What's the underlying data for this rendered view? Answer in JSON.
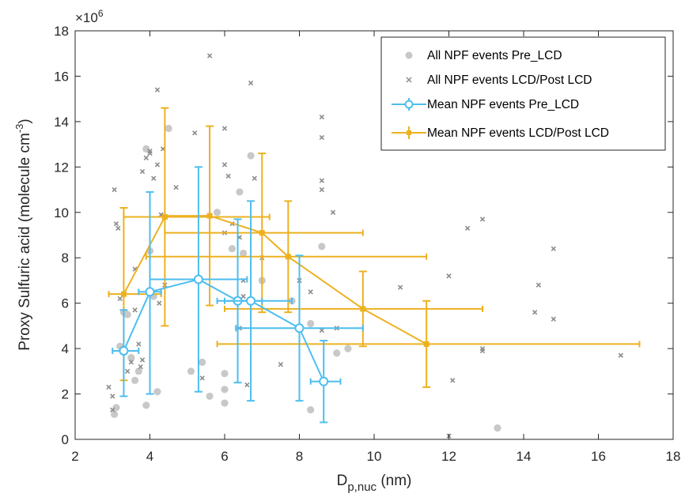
{
  "chart_data": {
    "type": "scatter",
    "xlabel": {
      "main": "D",
      "sub": "p,nuc",
      "unit": " (nm)"
    },
    "ylabel": {
      "main": "Proxy Sulfuric acid (molecule cm",
      "sup": "-3",
      "end": ")"
    },
    "y_exponent": {
      "base": "×10",
      "power": "6"
    },
    "xlim": [
      2,
      18
    ],
    "ylim": [
      0,
      18
    ],
    "xticks": [
      2,
      4,
      6,
      8,
      10,
      12,
      14,
      16,
      18
    ],
    "yticks": [
      0,
      2,
      4,
      6,
      8,
      10,
      12,
      14,
      16,
      18
    ],
    "grid": false,
    "legend_position": "top-right",
    "colors": {
      "pre": "#4dbeee",
      "post": "#edb120",
      "scatter_pre": "#c8c8c8",
      "scatter_post": "#8c8c8c",
      "axis": "#262626"
    },
    "series": [
      {
        "name": "All NPF events Pre_LCD",
        "marker": "circle",
        "points": [
          [
            3.05,
            1.1
          ],
          [
            3.1,
            1.4
          ],
          [
            3.2,
            4.1
          ],
          [
            3.3,
            5.6
          ],
          [
            3.4,
            5.5
          ],
          [
            3.5,
            3.6
          ],
          [
            3.6,
            2.6
          ],
          [
            3.7,
            3.0
          ],
          [
            3.9,
            12.8
          ],
          [
            3.9,
            1.5
          ],
          [
            4.0,
            8.3
          ],
          [
            4.1,
            6.3
          ],
          [
            4.2,
            2.1
          ],
          [
            4.5,
            13.7
          ],
          [
            5.1,
            3.0
          ],
          [
            5.4,
            3.4
          ],
          [
            5.6,
            1.9
          ],
          [
            5.8,
            10.0
          ],
          [
            6.0,
            2.9
          ],
          [
            6.0,
            2.2
          ],
          [
            6.0,
            1.6
          ],
          [
            6.2,
            8.4
          ],
          [
            6.4,
            10.9
          ],
          [
            6.5,
            8.2
          ],
          [
            6.7,
            12.5
          ],
          [
            7.0,
            7.0
          ],
          [
            7.8,
            6.1
          ],
          [
            8.3,
            5.1
          ],
          [
            8.3,
            1.3
          ],
          [
            8.6,
            8.5
          ],
          [
            9.0,
            3.8
          ],
          [
            9.3,
            4.0
          ],
          [
            13.3,
            0.5
          ]
        ]
      },
      {
        "name": "All NPF events LCD/Post LCD",
        "marker": "x",
        "points": [
          [
            2.9,
            2.3
          ],
          [
            3.0,
            1.9
          ],
          [
            3.0,
            1.3
          ],
          [
            3.05,
            11.0
          ],
          [
            3.1,
            9.5
          ],
          [
            3.15,
            9.3
          ],
          [
            3.2,
            6.2
          ],
          [
            3.3,
            4.0
          ],
          [
            3.4,
            3.0
          ],
          [
            3.5,
            3.4
          ],
          [
            3.6,
            7.5
          ],
          [
            3.6,
            5.7
          ],
          [
            3.7,
            4.2
          ],
          [
            3.75,
            3.2
          ],
          [
            3.8,
            3.5
          ],
          [
            3.8,
            11.8
          ],
          [
            3.9,
            12.4
          ],
          [
            4.0,
            12.6
          ],
          [
            4.0,
            12.7
          ],
          [
            4.1,
            11.5
          ],
          [
            4.2,
            15.4
          ],
          [
            4.2,
            12.1
          ],
          [
            4.25,
            6.0
          ],
          [
            4.3,
            9.9
          ],
          [
            4.35,
            12.8
          ],
          [
            4.4,
            6.8
          ],
          [
            4.7,
            11.1
          ],
          [
            5.2,
            13.5
          ],
          [
            5.4,
            2.7
          ],
          [
            5.6,
            16.9
          ],
          [
            6.0,
            13.7
          ],
          [
            6.0,
            12.1
          ],
          [
            6.0,
            9.1
          ],
          [
            6.1,
            11.6
          ],
          [
            6.2,
            9.5
          ],
          [
            6.4,
            8.9
          ],
          [
            6.4,
            4.9
          ],
          [
            6.5,
            7.0
          ],
          [
            6.5,
            6.3
          ],
          [
            6.6,
            2.4
          ],
          [
            6.7,
            15.7
          ],
          [
            6.8,
            11.5
          ],
          [
            7.0,
            8.0
          ],
          [
            7.5,
            3.3
          ],
          [
            8.0,
            7.0
          ],
          [
            8.3,
            6.5
          ],
          [
            8.6,
            14.2
          ],
          [
            8.6,
            13.3
          ],
          [
            8.6,
            11.4
          ],
          [
            8.6,
            11.0
          ],
          [
            8.6,
            4.8
          ],
          [
            8.9,
            10.0
          ],
          [
            9.0,
            4.9
          ],
          [
            10.7,
            6.7
          ],
          [
            12.0,
            7.2
          ],
          [
            12.1,
            2.6
          ],
          [
            12.5,
            9.3
          ],
          [
            12.9,
            9.7
          ],
          [
            12.9,
            4.0
          ],
          [
            12.9,
            3.9
          ],
          [
            14.3,
            5.6
          ],
          [
            14.4,
            6.8
          ],
          [
            14.8,
            8.4
          ],
          [
            14.8,
            5.3
          ],
          [
            16.6,
            3.7
          ],
          [
            12.0,
            0.15
          ]
        ]
      },
      {
        "name": "Mean NPF events Pre_LCD",
        "marker": "circle-plus",
        "points": [
          {
            "x": 3.3,
            "y": 3.9,
            "yerr": [
              1.9,
              5.7
            ],
            "xerr": [
              3.0,
              3.7
            ]
          },
          {
            "x": 4.0,
            "y": 6.5,
            "yerr": [
              2.0,
              10.9
            ],
            "xerr": [
              3.7,
              4.3
            ]
          },
          {
            "x": 5.3,
            "y": 7.05,
            "yerr": [
              2.1,
              12.0
            ],
            "xerr": [
              4.0,
              6.6
            ]
          },
          {
            "x": 6.35,
            "y": 6.1,
            "yerr": [
              2.5,
              9.7
            ],
            "xerr": [
              5.8,
              7.0
            ]
          },
          {
            "x": 6.7,
            "y": 6.1,
            "yerr": [
              1.7,
              10.5
            ],
            "xerr": [
              6.0,
              7.8
            ]
          },
          {
            "x": 8.0,
            "y": 4.9,
            "yerr": [
              1.7,
              8.1
            ],
            "xerr": [
              6.3,
              9.7
            ]
          },
          {
            "x": 8.65,
            "y": 2.55,
            "yerr": [
              0.75,
              4.35
            ],
            "xerr": [
              8.3,
              9.1
            ]
          }
        ]
      },
      {
        "name": "Mean NPF events LCD/Post LCD",
        "marker": "square",
        "points": [
          {
            "x": 3.3,
            "y": 6.4,
            "yerr": [
              2.6,
              10.2
            ],
            "xerr": [
              2.9,
              4.3
            ]
          },
          {
            "x": 4.4,
            "y": 9.8,
            "yerr": [
              5.0,
              14.6
            ],
            "xerr": [
              3.3,
              7.2
            ]
          },
          {
            "x": 5.6,
            "y": 9.85,
            "yerr": [
              5.9,
              13.8
            ],
            "xerr": [
              4.4,
              5.6
            ]
          },
          {
            "x": 7.0,
            "y": 9.1,
            "yerr": [
              5.6,
              12.6
            ],
            "xerr": [
              4.4,
              9.7
            ]
          },
          {
            "x": 7.7,
            "y": 8.05,
            "yerr": [
              5.6,
              10.5
            ],
            "xerr": [
              3.9,
              11.4
            ]
          },
          {
            "x": 9.7,
            "y": 5.75,
            "yerr": [
              4.1,
              7.4
            ],
            "xerr": [
              6.0,
              12.9
            ]
          },
          {
            "x": 11.4,
            "y": 4.2,
            "yerr": [
              2.3,
              6.1
            ],
            "xerr": [
              5.8,
              17.1
            ]
          }
        ]
      }
    ]
  }
}
